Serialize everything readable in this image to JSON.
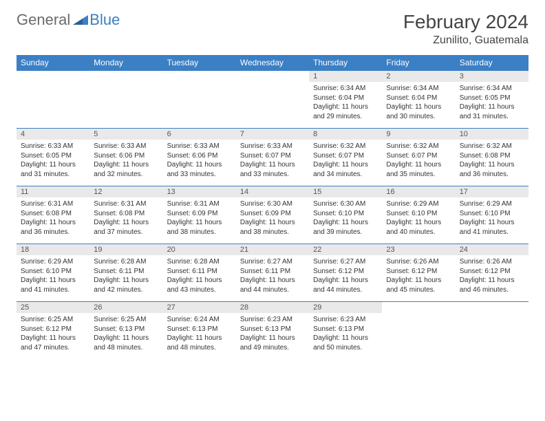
{
  "logo": {
    "part1": "General",
    "part2": "Blue"
  },
  "title": "February 2024",
  "location": "Zunilito, Guatemala",
  "colors": {
    "header_bg": "#3b7fc4",
    "header_text": "#ffffff",
    "daynum_bg": "#e9e9e9",
    "border": "#3b7fc4",
    "text": "#333333"
  },
  "font": {
    "family": "Arial",
    "title_size": 28,
    "header_size": 12,
    "cell_size": 10
  },
  "weekdays": [
    "Sunday",
    "Monday",
    "Tuesday",
    "Wednesday",
    "Thursday",
    "Friday",
    "Saturday"
  ],
  "weeks": [
    [
      null,
      null,
      null,
      null,
      {
        "n": "1",
        "sr": "Sunrise: 6:34 AM",
        "ss": "Sunset: 6:04 PM",
        "dl": "Daylight: 11 hours and 29 minutes."
      },
      {
        "n": "2",
        "sr": "Sunrise: 6:34 AM",
        "ss": "Sunset: 6:04 PM",
        "dl": "Daylight: 11 hours and 30 minutes."
      },
      {
        "n": "3",
        "sr": "Sunrise: 6:34 AM",
        "ss": "Sunset: 6:05 PM",
        "dl": "Daylight: 11 hours and 31 minutes."
      }
    ],
    [
      {
        "n": "4",
        "sr": "Sunrise: 6:33 AM",
        "ss": "Sunset: 6:05 PM",
        "dl": "Daylight: 11 hours and 31 minutes."
      },
      {
        "n": "5",
        "sr": "Sunrise: 6:33 AM",
        "ss": "Sunset: 6:06 PM",
        "dl": "Daylight: 11 hours and 32 minutes."
      },
      {
        "n": "6",
        "sr": "Sunrise: 6:33 AM",
        "ss": "Sunset: 6:06 PM",
        "dl": "Daylight: 11 hours and 33 minutes."
      },
      {
        "n": "7",
        "sr": "Sunrise: 6:33 AM",
        "ss": "Sunset: 6:07 PM",
        "dl": "Daylight: 11 hours and 33 minutes."
      },
      {
        "n": "8",
        "sr": "Sunrise: 6:32 AM",
        "ss": "Sunset: 6:07 PM",
        "dl": "Daylight: 11 hours and 34 minutes."
      },
      {
        "n": "9",
        "sr": "Sunrise: 6:32 AM",
        "ss": "Sunset: 6:07 PM",
        "dl": "Daylight: 11 hours and 35 minutes."
      },
      {
        "n": "10",
        "sr": "Sunrise: 6:32 AM",
        "ss": "Sunset: 6:08 PM",
        "dl": "Daylight: 11 hours and 36 minutes."
      }
    ],
    [
      {
        "n": "11",
        "sr": "Sunrise: 6:31 AM",
        "ss": "Sunset: 6:08 PM",
        "dl": "Daylight: 11 hours and 36 minutes."
      },
      {
        "n": "12",
        "sr": "Sunrise: 6:31 AM",
        "ss": "Sunset: 6:08 PM",
        "dl": "Daylight: 11 hours and 37 minutes."
      },
      {
        "n": "13",
        "sr": "Sunrise: 6:31 AM",
        "ss": "Sunset: 6:09 PM",
        "dl": "Daylight: 11 hours and 38 minutes."
      },
      {
        "n": "14",
        "sr": "Sunrise: 6:30 AM",
        "ss": "Sunset: 6:09 PM",
        "dl": "Daylight: 11 hours and 38 minutes."
      },
      {
        "n": "15",
        "sr": "Sunrise: 6:30 AM",
        "ss": "Sunset: 6:10 PM",
        "dl": "Daylight: 11 hours and 39 minutes."
      },
      {
        "n": "16",
        "sr": "Sunrise: 6:29 AM",
        "ss": "Sunset: 6:10 PM",
        "dl": "Daylight: 11 hours and 40 minutes."
      },
      {
        "n": "17",
        "sr": "Sunrise: 6:29 AM",
        "ss": "Sunset: 6:10 PM",
        "dl": "Daylight: 11 hours and 41 minutes."
      }
    ],
    [
      {
        "n": "18",
        "sr": "Sunrise: 6:29 AM",
        "ss": "Sunset: 6:10 PM",
        "dl": "Daylight: 11 hours and 41 minutes."
      },
      {
        "n": "19",
        "sr": "Sunrise: 6:28 AM",
        "ss": "Sunset: 6:11 PM",
        "dl": "Daylight: 11 hours and 42 minutes."
      },
      {
        "n": "20",
        "sr": "Sunrise: 6:28 AM",
        "ss": "Sunset: 6:11 PM",
        "dl": "Daylight: 11 hours and 43 minutes."
      },
      {
        "n": "21",
        "sr": "Sunrise: 6:27 AM",
        "ss": "Sunset: 6:11 PM",
        "dl": "Daylight: 11 hours and 44 minutes."
      },
      {
        "n": "22",
        "sr": "Sunrise: 6:27 AM",
        "ss": "Sunset: 6:12 PM",
        "dl": "Daylight: 11 hours and 44 minutes."
      },
      {
        "n": "23",
        "sr": "Sunrise: 6:26 AM",
        "ss": "Sunset: 6:12 PM",
        "dl": "Daylight: 11 hours and 45 minutes."
      },
      {
        "n": "24",
        "sr": "Sunrise: 6:26 AM",
        "ss": "Sunset: 6:12 PM",
        "dl": "Daylight: 11 hours and 46 minutes."
      }
    ],
    [
      {
        "n": "25",
        "sr": "Sunrise: 6:25 AM",
        "ss": "Sunset: 6:12 PM",
        "dl": "Daylight: 11 hours and 47 minutes."
      },
      {
        "n": "26",
        "sr": "Sunrise: 6:25 AM",
        "ss": "Sunset: 6:13 PM",
        "dl": "Daylight: 11 hours and 48 minutes."
      },
      {
        "n": "27",
        "sr": "Sunrise: 6:24 AM",
        "ss": "Sunset: 6:13 PM",
        "dl": "Daylight: 11 hours and 48 minutes."
      },
      {
        "n": "28",
        "sr": "Sunrise: 6:23 AM",
        "ss": "Sunset: 6:13 PM",
        "dl": "Daylight: 11 hours and 49 minutes."
      },
      {
        "n": "29",
        "sr": "Sunrise: 6:23 AM",
        "ss": "Sunset: 6:13 PM",
        "dl": "Daylight: 11 hours and 50 minutes."
      },
      null,
      null
    ]
  ]
}
